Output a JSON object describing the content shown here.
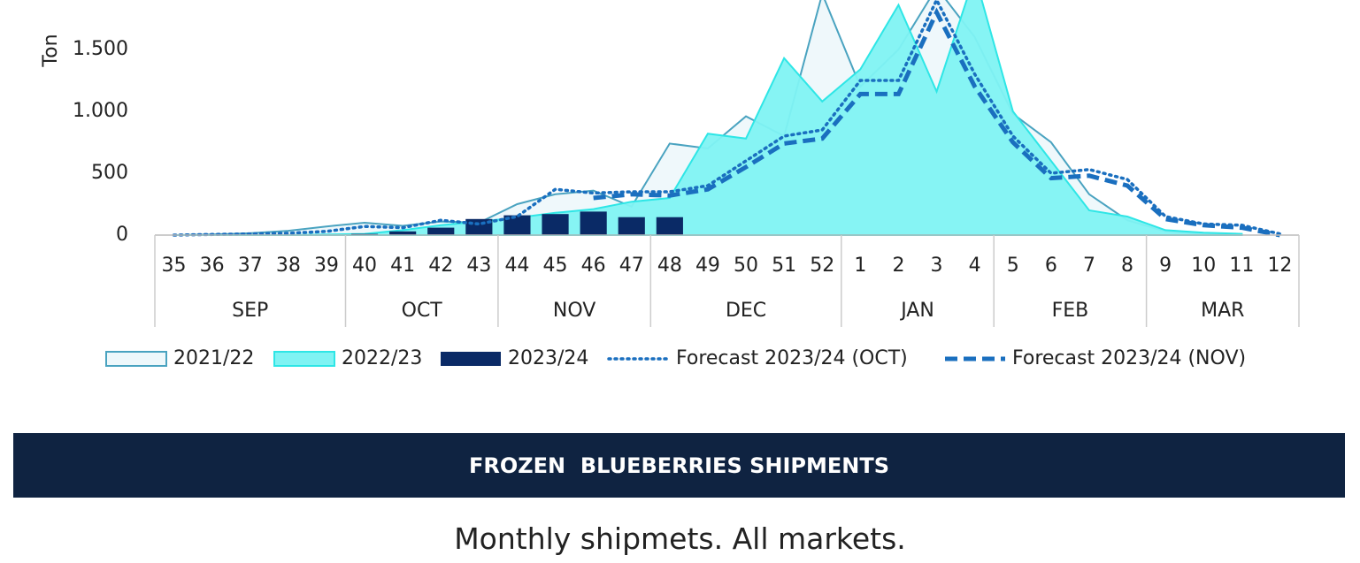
{
  "chart_data": {
    "type": "combo",
    "y_label": "Ton",
    "categories": [
      "35",
      "36",
      "37",
      "38",
      "39",
      "40",
      "41",
      "42",
      "43",
      "44",
      "45",
      "46",
      "47",
      "48",
      "49",
      "50",
      "51",
      "52",
      "1",
      "2",
      "3",
      "4",
      "5",
      "6",
      "7",
      "8",
      "9",
      "10",
      "11",
      "12"
    ],
    "groups": [
      {
        "label": "SEP",
        "count": 5
      },
      {
        "label": "OCT",
        "count": 4
      },
      {
        "label": "NOV",
        "count": 4
      },
      {
        "label": "DEC",
        "count": 5
      },
      {
        "label": "JAN",
        "count": 4
      },
      {
        "label": "FEB",
        "count": 4
      },
      {
        "label": "MAR",
        "count": 4
      }
    ],
    "ylim": [
      0,
      2000
    ],
    "yticks": [
      0,
      500,
      {
        "value": 1000,
        "label": "1.000"
      },
      {
        "value": 1500,
        "label": "1.500"
      }
    ],
    "series": [
      {
        "name": "2021/22",
        "type": "area",
        "color": "#4aa3c0",
        "fill": "#eef8fb",
        "values": [
          0,
          5,
          15,
          35,
          70,
          100,
          75,
          110,
          100,
          250,
          330,
          360,
          230,
          740,
          700,
          960,
          800,
          1950,
          1200,
          1500,
          2000,
          1600,
          980,
          750,
          330,
          120,
          30,
          10,
          5,
          null
        ]
      },
      {
        "name": "2022/23",
        "type": "area",
        "color": "#2ee6e6",
        "fill": "#7ff3f3",
        "values": [
          0,
          0,
          0,
          0,
          5,
          10,
          40,
          80,
          110,
          140,
          180,
          210,
          270,
          300,
          820,
          780,
          1430,
          1080,
          1340,
          1860,
          1160,
          2100,
          1000,
          600,
          200,
          150,
          40,
          20,
          10,
          null
        ]
      },
      {
        "name": "2023/24",
        "type": "bar",
        "color": "#0a2a66",
        "values": [
          null,
          null,
          null,
          null,
          null,
          10,
          30,
          60,
          130,
          160,
          170,
          190,
          145,
          145,
          null,
          null,
          null,
          null,
          null,
          null,
          null,
          null,
          null,
          null,
          null,
          null,
          null,
          null,
          null,
          null
        ]
      },
      {
        "name": "Forecast 2023/24 (OCT)",
        "type": "line",
        "dash": "dotted",
        "color": "#1a6fbf",
        "values": [
          0,
          5,
          10,
          15,
          30,
          70,
          60,
          120,
          90,
          150,
          370,
          340,
          350,
          350,
          400,
          600,
          800,
          850,
          1250,
          1250,
          1900,
          1300,
          800,
          500,
          530,
          450,
          150,
          90,
          80,
          10
        ]
      },
      {
        "name": "Forecast 2023/24 (NOV)",
        "type": "line",
        "dash": "dashed",
        "color": "#1a6fbf",
        "values": [
          null,
          null,
          null,
          null,
          null,
          null,
          null,
          null,
          null,
          null,
          null,
          300,
          330,
          320,
          370,
          550,
          740,
          780,
          1140,
          1140,
          1800,
          1200,
          750,
          460,
          480,
          400,
          130,
          80,
          60,
          0
        ]
      }
    ],
    "header": "FROZEN  BLUEBERRIES SHIPMENTS",
    "subtitle": "Monthly shipmets. All markets."
  }
}
